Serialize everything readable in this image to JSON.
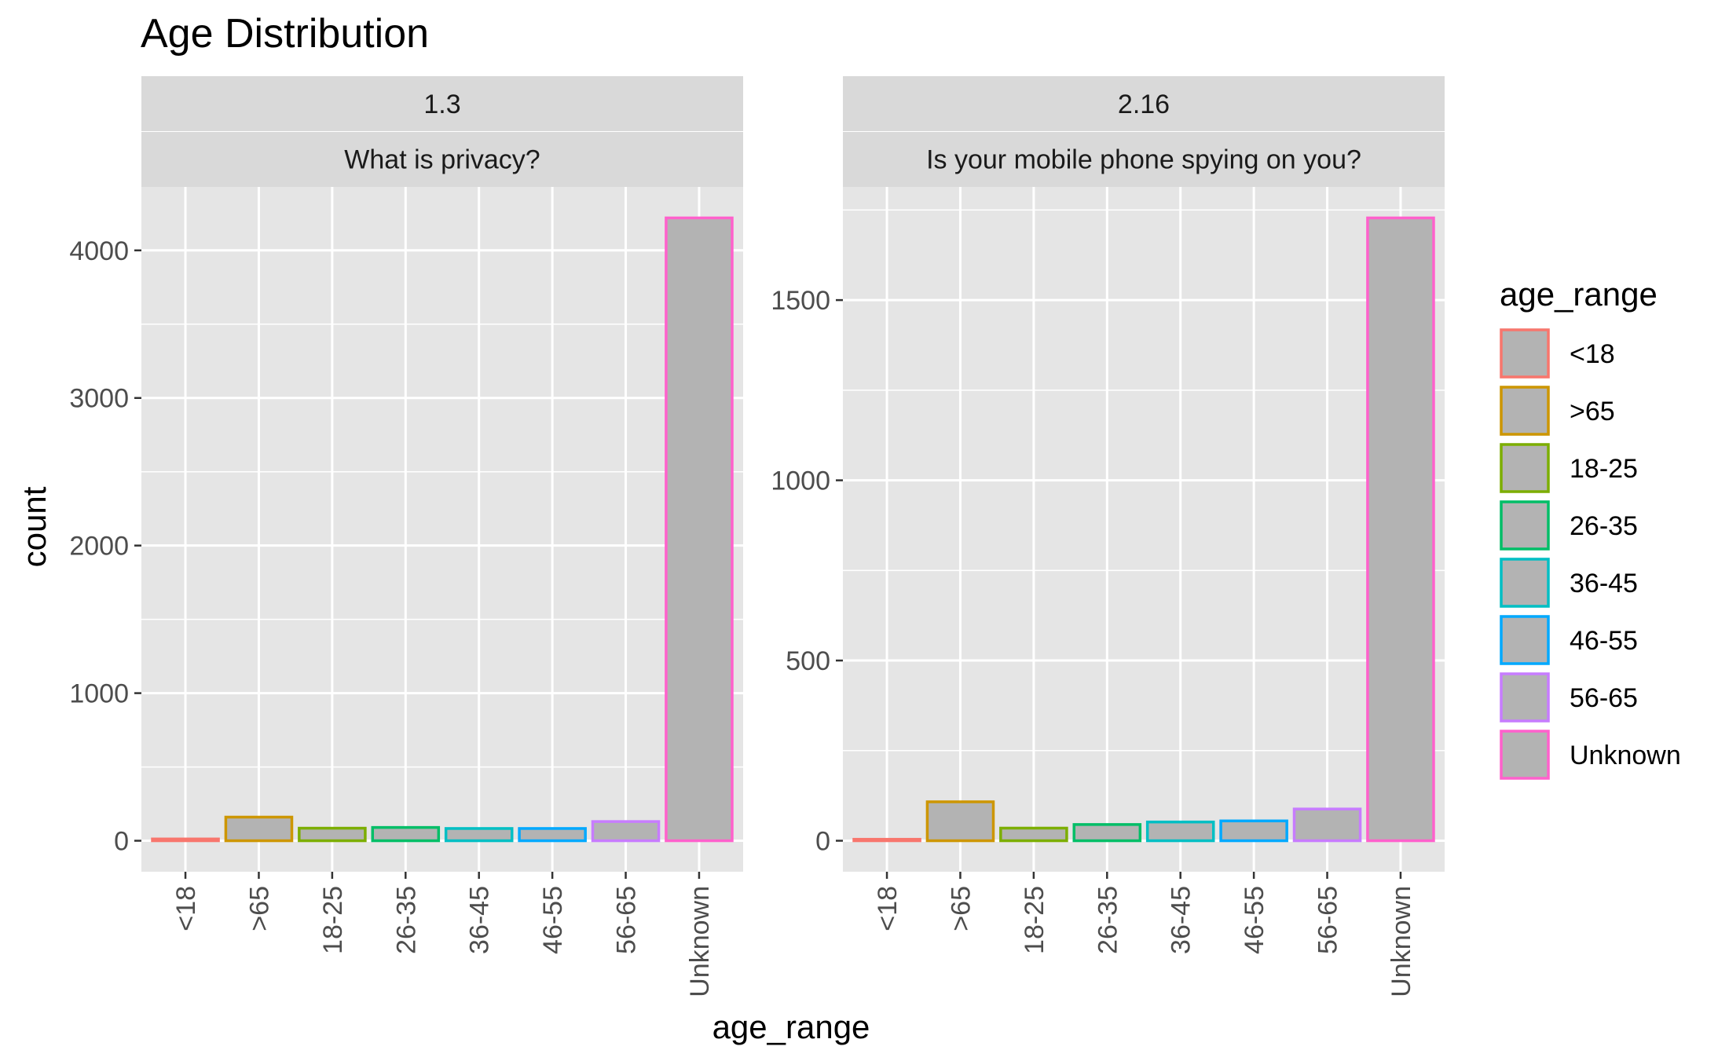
{
  "chart_data": {
    "type": "bar",
    "title": "Age Distribution",
    "xlabel": "age_range",
    "ylabel": "count",
    "categories": [
      "<18",
      ">65",
      "18-25",
      "26-35",
      "36-45",
      "46-55",
      "56-65",
      "Unknown"
    ],
    "legend": {
      "title": "age_range",
      "position": "right",
      "items": [
        "<18",
        ">65",
        "18-25",
        "26-35",
        "36-45",
        "46-55",
        "56-65",
        "Unknown"
      ]
    },
    "colors": {
      "<18": "#F8766D",
      ">65": "#CD9600",
      "18-25": "#7CAE00",
      "26-35": "#00BE67",
      "36-45": "#00BFC4",
      "46-55": "#00A9FF",
      "56-65": "#C77CFF",
      "Unknown": "#FF61CC",
      "bar_fill": "#b3b3b3",
      "panel_bg": "#e5e5e5",
      "strip_bg": "#d9d9d9",
      "grid": "#ffffff"
    },
    "grid": true,
    "panels": [
      {
        "strip_top": "1.3",
        "strip_bottom": "What is privacy?",
        "values": [
          12,
          160,
          85,
          90,
          83,
          83,
          130,
          4220
        ],
        "ylim": [
          -210,
          4430
        ],
        "yticks": [
          0,
          1000,
          2000,
          3000,
          4000
        ],
        "ytick_labels": [
          "0",
          "1000",
          "2000",
          "3000",
          "4000"
        ]
      },
      {
        "strip_top": "2.16",
        "strip_bottom": "Is your mobile phone spying on you?",
        "values": [
          4,
          108,
          35,
          45,
          52,
          55,
          88,
          1728
        ],
        "ylim": [
          -86,
          1814
        ],
        "yticks": [
          0,
          500,
          1000,
          1500
        ],
        "ytick_labels": [
          "0",
          "500",
          "1000",
          "1500"
        ]
      }
    ]
  }
}
